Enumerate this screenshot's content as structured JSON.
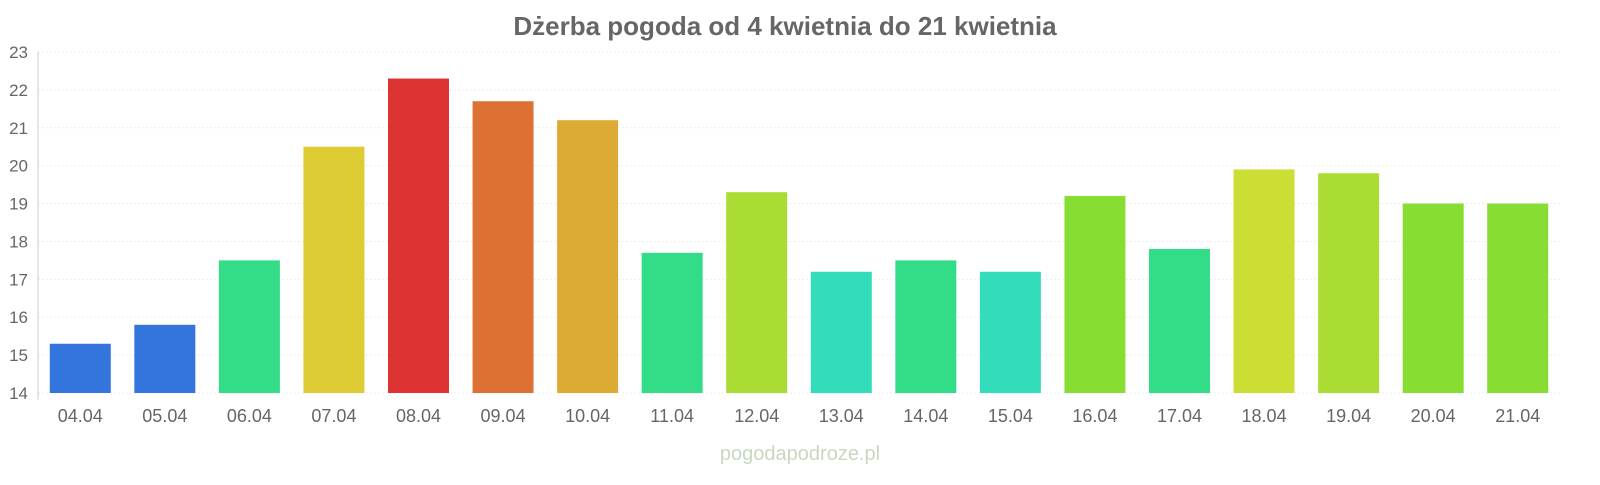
{
  "chart_data": {
    "type": "bar",
    "title": "Dżerba pogoda od 4 kwietnia do 21 kwietnia",
    "xlabel": "",
    "ylabel": "",
    "ylim": [
      14,
      23
    ],
    "yticks": [
      "14",
      "15",
      "16",
      "17",
      "18",
      "19",
      "20",
      "21",
      "22",
      "23"
    ],
    "grid": true,
    "categories": [
      "04.04",
      "05.04",
      "06.04",
      "07.04",
      "08.04",
      "09.04",
      "10.04",
      "11.04",
      "12.04",
      "13.04",
      "14.04",
      "15.04",
      "16.04",
      "17.04",
      "18.04",
      "19.04",
      "20.04",
      "21.04"
    ],
    "values": [
      15.3,
      15.8,
      17.5,
      20.5,
      22.3,
      21.7,
      21.2,
      17.7,
      19.3,
      17.2,
      17.5,
      17.2,
      19.2,
      17.8,
      19.9,
      19.8,
      19.0,
      19.0
    ],
    "colors": [
      "#3375dd",
      "#3375dd",
      "#33dd88",
      "#ddcc33",
      "#dd3333",
      "#dd7033",
      "#ddaa33",
      "#33dd88",
      "#aadd33",
      "#33ddbb",
      "#33dd88",
      "#33ddbb",
      "#88dd33",
      "#33dd88",
      "#ccdd33",
      "#aadd33",
      "#88dd33",
      "#88dd33"
    ]
  },
  "watermark": "pogodapodroze.pl"
}
